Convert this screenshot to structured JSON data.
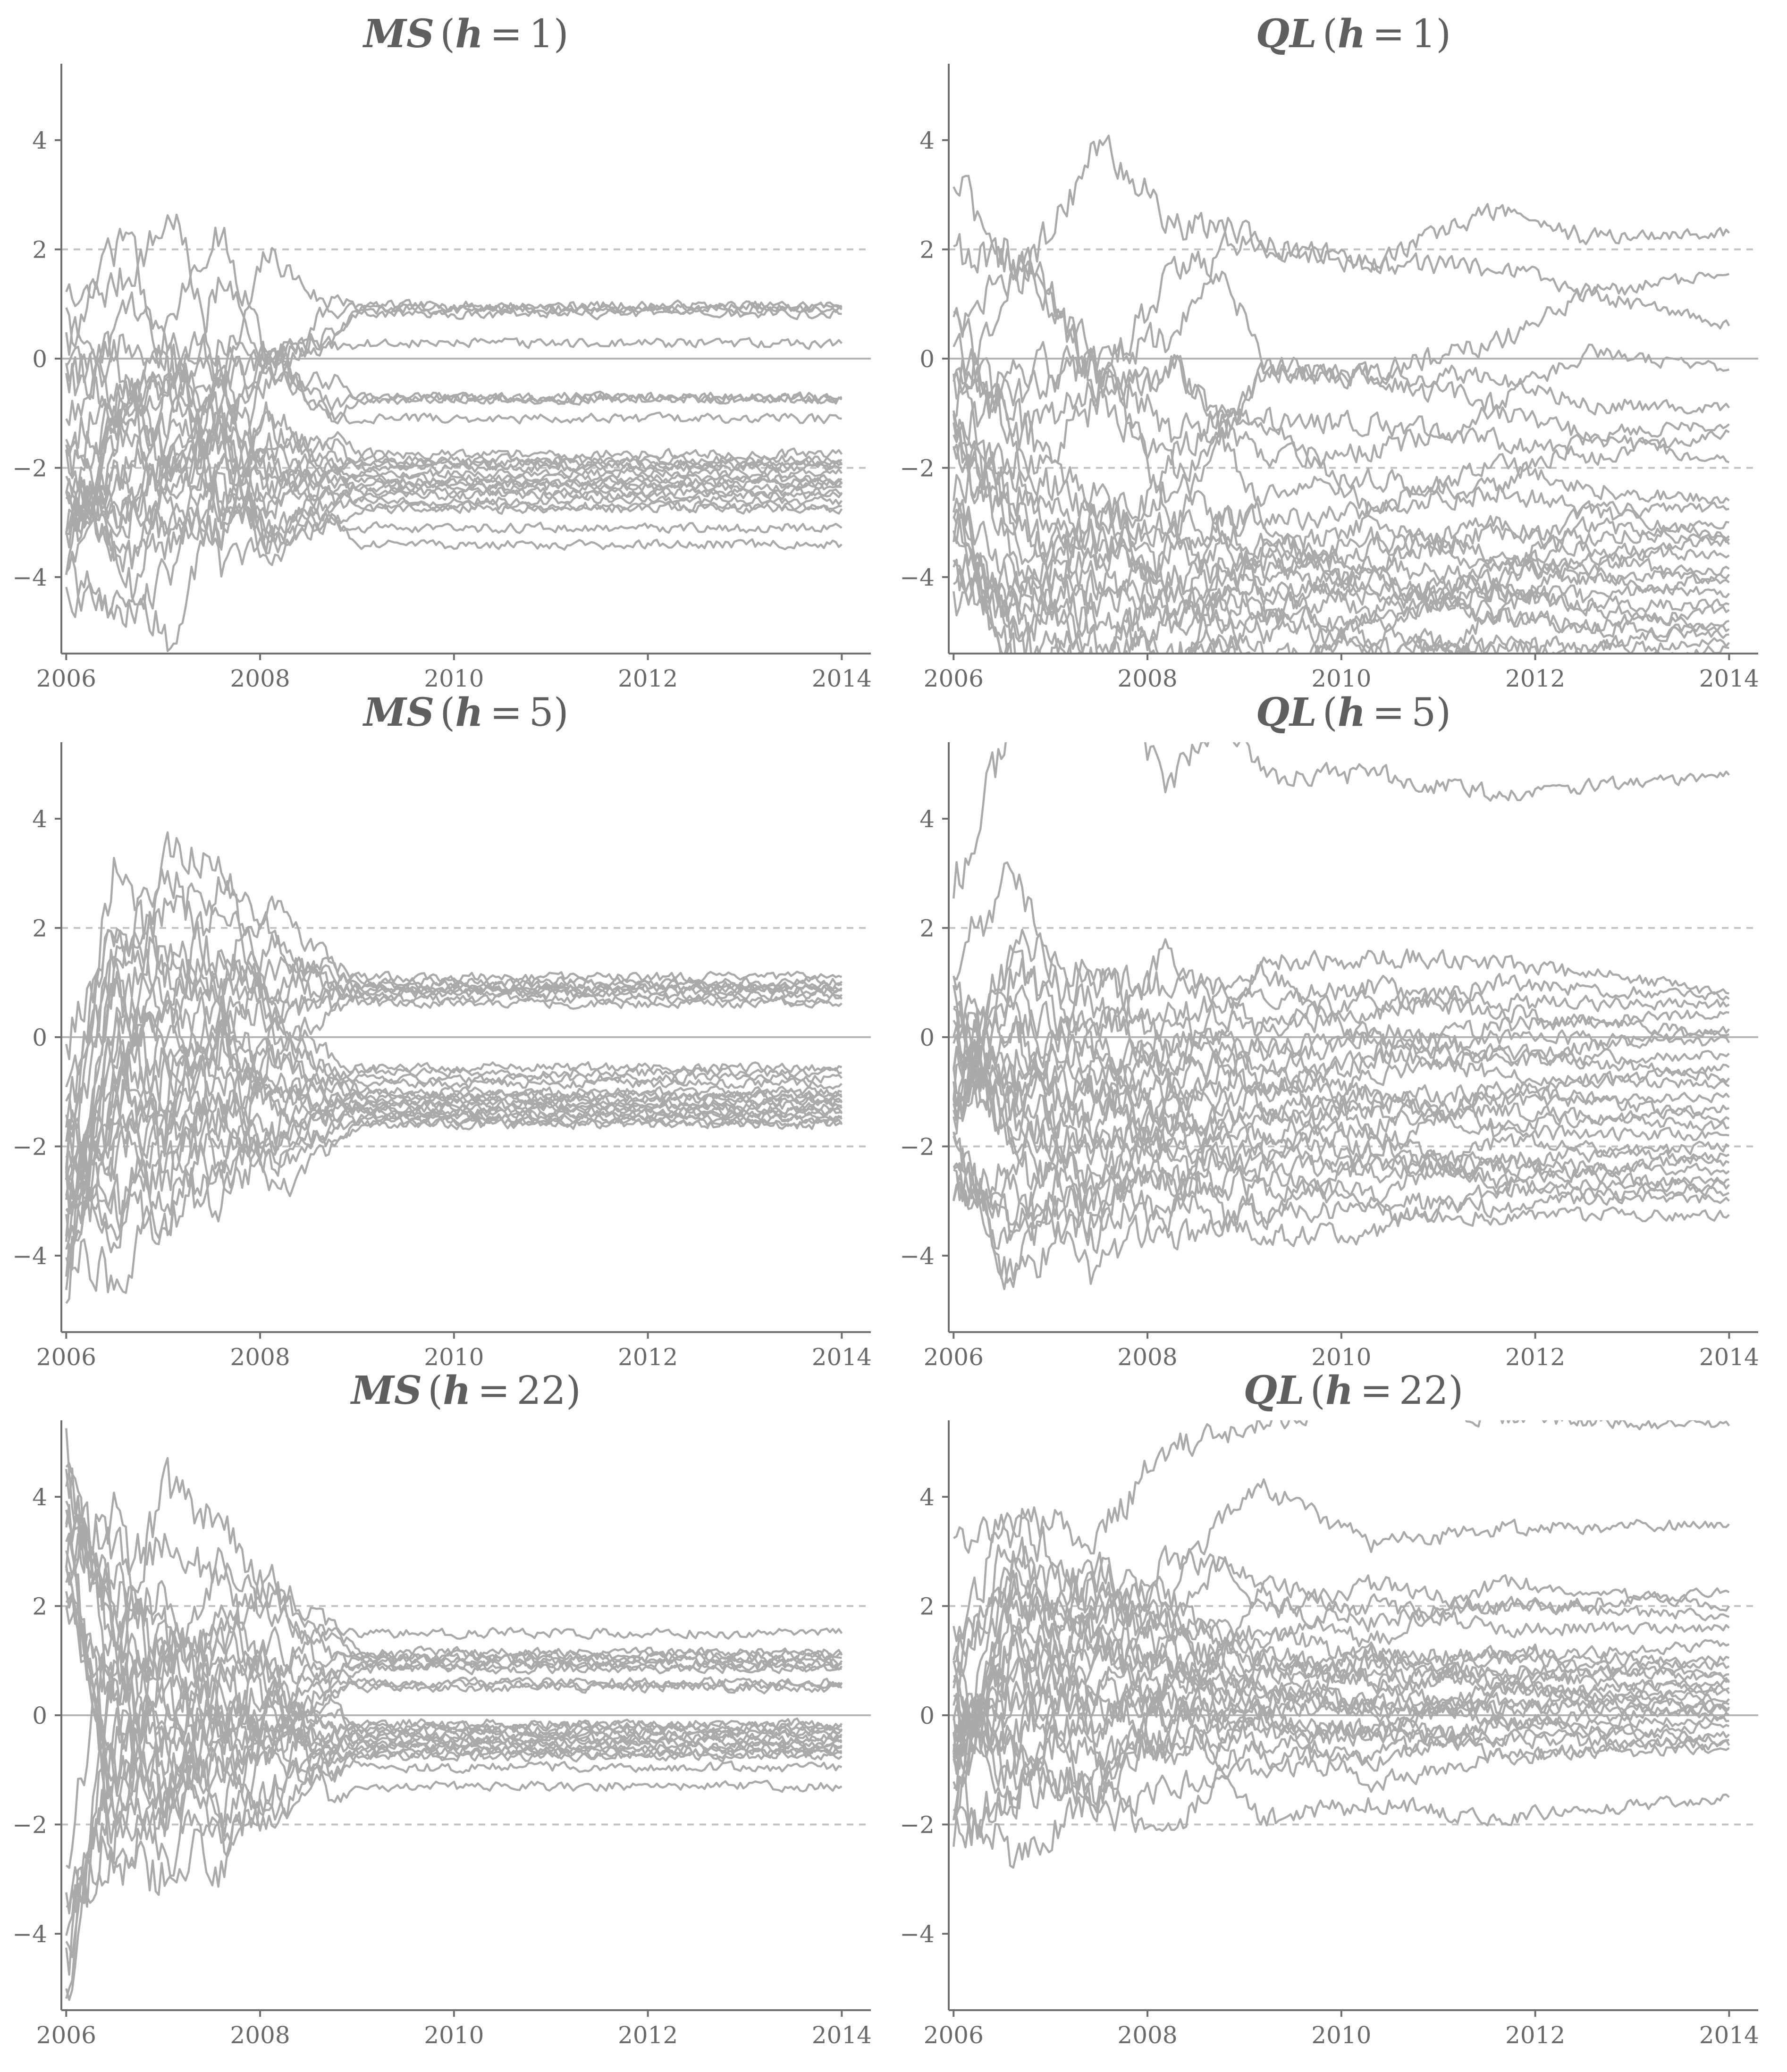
{
  "chart_data": [
    {
      "id": "ms1",
      "type": "line",
      "title": {
        "metric": "MS",
        "h": "1"
      },
      "x_ticks": [
        "2006",
        "2008",
        "2010",
        "2012",
        "2014"
      ],
      "y_ticks": [
        "4",
        "2",
        "0",
        "−2",
        "−4"
      ],
      "xlim": [
        2005.95,
        2014.3
      ],
      "ylim": [
        -5.4,
        5.4
      ],
      "reference_lines": {
        "solid": [
          0
        ],
        "dashed": [
          -2,
          2
        ]
      },
      "grid": false,
      "series_color": "#aaaaaa",
      "series_shape": {
        "count": 26,
        "breaks": [
          2006.0,
          2006.6,
          2007.1,
          2007.6,
          2008.05,
          2008.75,
          2009.0,
          2014.0
        ],
        "finals": [
          0.97,
          0.9,
          0.82,
          0.28,
          -0.7,
          -0.75,
          -1.1,
          -1.75,
          -1.85,
          -1.95,
          -2.0,
          -2.1,
          -2.2,
          -2.3,
          -2.35,
          -2.45,
          -2.5,
          -2.6,
          -2.7,
          -2.75,
          -3.1,
          -3.4,
          -0.72,
          -2.25,
          0.93,
          -1.9
        ],
        "spread": [
          2.6,
          2.2,
          2.0,
          1.8,
          1.4,
          0.5,
          0.0,
          0.0
        ]
      }
    },
    {
      "id": "ql1",
      "type": "line",
      "title": {
        "metric": "QL",
        "h": "1"
      },
      "x_ticks": [
        "2006",
        "2008",
        "2010",
        "2012",
        "2014"
      ],
      "y_ticks": [
        "4",
        "2",
        "0",
        "−2",
        "−4"
      ],
      "xlim": [
        2005.95,
        2014.3
      ],
      "ylim": [
        -5.4,
        5.4
      ],
      "reference_lines": {
        "solid": [
          0
        ],
        "dashed": [
          -2,
          2
        ]
      },
      "grid": false,
      "series_color": "#aaaaaa",
      "series_shape": {
        "count": 26,
        "breaks": [
          2006.0,
          2006.7,
          2007.5,
          2008.3,
          2008.75,
          2009.2,
          2010.3,
          2011.6,
          2012.5,
          2014.0
        ],
        "finals": [
          2.3,
          1.55,
          0.6,
          -0.2,
          -0.9,
          -1.2,
          -1.35,
          -1.9,
          -2.6,
          -2.75,
          -3.0,
          -3.25,
          -3.4,
          -3.6,
          -3.85,
          -3.95,
          -4.1,
          -4.3,
          -4.5,
          -4.6,
          -4.8,
          -4.95,
          -5.05,
          -5.2,
          -5.3,
          -3.3
        ],
        "spread": [
          2.4,
          2.2,
          1.9,
          1.7,
          1.2,
          1.0,
          0.9,
          0.8,
          0.6,
          0.0
        ]
      }
    },
    {
      "id": "ms5",
      "type": "line",
      "title": {
        "metric": "MS",
        "h": "5"
      },
      "x_ticks": [
        "2006",
        "2008",
        "2010",
        "2012",
        "2014"
      ],
      "y_ticks": [
        "4",
        "2",
        "0",
        "−2",
        "−4"
      ],
      "xlim": [
        2005.95,
        2014.3
      ],
      "ylim": [
        -5.4,
        5.4
      ],
      "reference_lines": {
        "solid": [
          0
        ],
        "dashed": [
          -2,
          2
        ]
      },
      "grid": false,
      "series_color": "#aaaaaa",
      "series_shape": {
        "count": 26,
        "breaks": [
          2006.0,
          2006.5,
          2007.0,
          2007.6,
          2008.1,
          2008.75,
          2009.0,
          2014.0
        ],
        "finals": [
          1.1,
          1.02,
          0.95,
          0.9,
          0.85,
          0.78,
          0.7,
          0.62,
          -0.55,
          -0.65,
          -0.75,
          -0.85,
          -1.0,
          -1.05,
          -1.1,
          -1.15,
          -1.2,
          -1.25,
          -1.3,
          -1.35,
          -1.4,
          -1.45,
          -1.5,
          -1.55,
          -1.6,
          0.88
        ],
        "spread": [
          3.4,
          3.0,
          2.6,
          2.2,
          1.6,
          0.6,
          0.0,
          0.0
        ]
      }
    },
    {
      "id": "ql5",
      "type": "line",
      "title": {
        "metric": "QL",
        "h": "5"
      },
      "x_ticks": [
        "2006",
        "2008",
        "2010",
        "2012",
        "2014"
      ],
      "y_ticks": [
        "4",
        "2",
        "0",
        "−2",
        "−4"
      ],
      "xlim": [
        2005.95,
        2014.3
      ],
      "ylim": [
        -5.4,
        5.4
      ],
      "reference_lines": {
        "solid": [
          0
        ],
        "dashed": [
          -2,
          2
        ]
      },
      "grid": false,
      "series_color": "#aaaaaa",
      "series_shape": {
        "count": 26,
        "breaks": [
          2006.0,
          2006.6,
          2007.4,
          2008.2,
          2008.75,
          2009.2,
          2010.3,
          2011.6,
          2014.0
        ],
        "finals": [
          4.8,
          0.8,
          0.7,
          0.6,
          0.45,
          0.15,
          0.05,
          -0.1,
          -0.3,
          -0.55,
          -0.75,
          -0.9,
          -1.1,
          -1.3,
          -1.5,
          -1.65,
          -1.8,
          -2.0,
          -2.15,
          -2.3,
          -2.45,
          -2.6,
          -2.7,
          -2.85,
          -3.0,
          -3.25
        ],
        "spread": [
          2.8,
          2.4,
          2.0,
          1.6,
          1.1,
          0.9,
          0.8,
          0.6,
          0.0
        ]
      }
    },
    {
      "id": "ms22",
      "type": "line",
      "title": {
        "metric": "MS",
        "h": "22"
      },
      "x_ticks": [
        "2006",
        "2008",
        "2010",
        "2012",
        "2014"
      ],
      "y_ticks": [
        "4",
        "2",
        "0",
        "−2",
        "−4"
      ],
      "xlim": [
        2005.95,
        2014.3
      ],
      "ylim": [
        -5.4,
        5.4
      ],
      "reference_lines": {
        "solid": [
          0
        ],
        "dashed": [
          -2,
          2
        ]
      },
      "grid": false,
      "series_color": "#aaaaaa",
      "series_shape": {
        "count": 26,
        "breaks": [
          2006.0,
          2006.5,
          2007.0,
          2007.6,
          2008.1,
          2008.75,
          2009.0,
          2014.0
        ],
        "finals": [
          1.5,
          1.15,
          1.1,
          1.05,
          1.0,
          0.95,
          0.9,
          0.85,
          0.6,
          0.5,
          -0.15,
          -0.2,
          -0.25,
          -0.3,
          -0.35,
          -0.4,
          -0.45,
          -0.5,
          -0.55,
          -0.6,
          -0.65,
          -0.7,
          -0.75,
          -0.95,
          -1.3,
          0.55
        ],
        "spread": [
          3.6,
          3.2,
          2.8,
          2.4,
          1.8,
          0.6,
          0.0,
          0.0
        ]
      }
    },
    {
      "id": "ql22",
      "type": "line",
      "title": {
        "metric": "QL",
        "h": "22"
      },
      "x_ticks": [
        "2006",
        "2008",
        "2010",
        "2012",
        "2014"
      ],
      "y_ticks": [
        "4",
        "2",
        "0",
        "−2",
        "−4"
      ],
      "xlim": [
        2005.95,
        2014.3
      ],
      "ylim": [
        -5.4,
        5.4
      ],
      "reference_lines": {
        "solid": [
          0
        ],
        "dashed": [
          -2,
          2
        ]
      },
      "grid": false,
      "series_color": "#aaaaaa",
      "series_shape": {
        "count": 26,
        "breaks": [
          2006.0,
          2006.6,
          2007.5,
          2008.2,
          2008.75,
          2009.2,
          2010.3,
          2011.6,
          2014.0
        ],
        "finals": [
          5.3,
          3.5,
          2.25,
          2.0,
          1.8,
          1.6,
          1.3,
          1.05,
          0.9,
          0.75,
          0.6,
          0.5,
          0.4,
          0.3,
          0.2,
          0.15,
          0.1,
          0.0,
          -0.1,
          -0.2,
          -0.35,
          -0.45,
          -0.55,
          -0.6,
          -1.5,
          0.65
        ],
        "spread": [
          3.0,
          2.6,
          2.0,
          1.5,
          1.0,
          0.8,
          0.7,
          0.5,
          0.0
        ]
      }
    }
  ]
}
